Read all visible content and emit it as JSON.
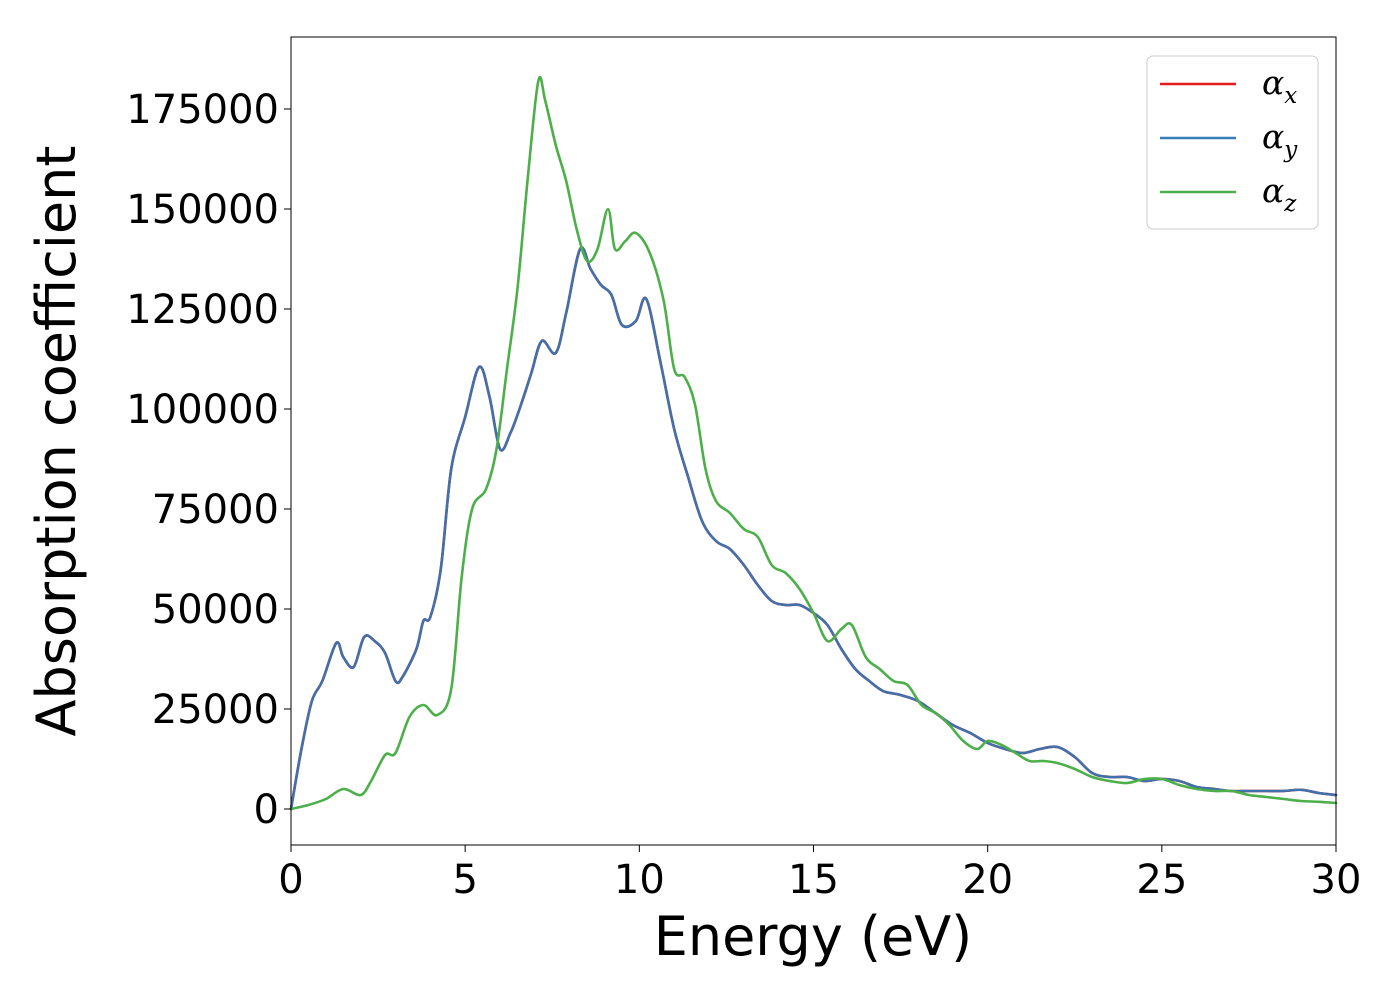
{
  "chart_data": {
    "type": "line",
    "title": "",
    "xlabel": "Energy (eV)",
    "ylabel": "Absorption coefficient",
    "xlim": [
      0,
      30
    ],
    "ylim": [
      -9000,
      193000
    ],
    "xticks": [
      0,
      5,
      10,
      15,
      20,
      25,
      30
    ],
    "xtick_labels": [
      "0",
      "5",
      "10",
      "15",
      "20",
      "25",
      "30"
    ],
    "yticks": [
      0,
      25000,
      50000,
      75000,
      100000,
      125000,
      150000,
      175000
    ],
    "ytick_labels": [
      "0",
      "25000",
      "50000",
      "75000",
      "100000",
      "125000",
      "150000",
      "175000"
    ],
    "grid": false,
    "legend_position": "top-right",
    "legend": [
      {
        "base": "α",
        "sub": "x",
        "color": "#e41a1c"
      },
      {
        "base": "α",
        "sub": "y",
        "color": "#377eb8"
      },
      {
        "base": "α",
        "sub": "z",
        "color": "#4daf4a"
      }
    ],
    "series": [
      {
        "color": "#e41a1c",
        "x": [
          0,
          0.3,
          0.6,
          0.9,
          1.3,
          1.5,
          1.8,
          2.1,
          2.4,
          2.7,
          3.0,
          3.2,
          3.6,
          3.8,
          4.0,
          4.3,
          4.6,
          5.0,
          5.4,
          5.7,
          6.0,
          6.3,
          6.6,
          6.9,
          7.2,
          7.6,
          7.9,
          8.3,
          8.6,
          8.9,
          9.2,
          9.5,
          9.9,
          10.2,
          10.6,
          11.0,
          11.4,
          11.8,
          12.2,
          12.6,
          13.0,
          13.4,
          13.8,
          14.2,
          14.6,
          15.0,
          15.4,
          15.8,
          16.2,
          16.6,
          17.0,
          17.5,
          18.0,
          18.5,
          19.0,
          19.5,
          20.0,
          20.5,
          21.0,
          21.5,
          22.0,
          22.5,
          23.0,
          23.5,
          24.0,
          24.5,
          25.0,
          25.5,
          26.0,
          26.5,
          27.0,
          27.5,
          28.0,
          28.5,
          29.0,
          29.5,
          30.0
        ],
        "y": [
          0,
          15000,
          27000,
          32000,
          41500,
          38000,
          35500,
          43000,
          42000,
          39000,
          32000,
          33000,
          40000,
          47000,
          48000,
          60000,
          85000,
          98000,
          110500,
          103000,
          90000,
          94000,
          101000,
          109000,
          117000,
          114000,
          124000,
          140000,
          135000,
          131000,
          128500,
          121000,
          122000,
          127500,
          112000,
          95000,
          83000,
          72000,
          67000,
          65000,
          61000,
          56000,
          52000,
          51000,
          51000,
          49000,
          46000,
          40000,
          35000,
          32000,
          29500,
          28500,
          27000,
          24000,
          21000,
          19000,
          16500,
          15000,
          14000,
          15000,
          15500,
          13000,
          9000,
          8000,
          8000,
          7000,
          7500,
          7000,
          5500,
          5000,
          4500,
          4500,
          4500,
          4500,
          4800,
          4000,
          3500
        ]
      },
      {
        "color": "#4170aa",
        "x": [
          0,
          0.3,
          0.6,
          0.9,
          1.3,
          1.5,
          1.8,
          2.1,
          2.4,
          2.7,
          3.0,
          3.2,
          3.6,
          3.8,
          4.0,
          4.3,
          4.6,
          5.0,
          5.4,
          5.7,
          6.0,
          6.3,
          6.6,
          6.9,
          7.2,
          7.6,
          7.9,
          8.3,
          8.6,
          8.9,
          9.2,
          9.5,
          9.9,
          10.2,
          10.6,
          11.0,
          11.4,
          11.8,
          12.2,
          12.6,
          13.0,
          13.4,
          13.8,
          14.2,
          14.6,
          15.0,
          15.4,
          15.8,
          16.2,
          16.6,
          17.0,
          17.5,
          18.0,
          18.5,
          19.0,
          19.5,
          20.0,
          20.5,
          21.0,
          21.5,
          22.0,
          22.5,
          23.0,
          23.5,
          24.0,
          24.5,
          25.0,
          25.5,
          26.0,
          26.5,
          27.0,
          27.5,
          28.0,
          28.5,
          29.0,
          29.5,
          30.0
        ],
        "y": [
          0,
          15000,
          27000,
          32000,
          41500,
          38000,
          35500,
          43000,
          42000,
          39000,
          32000,
          33000,
          40000,
          47000,
          48000,
          60000,
          85000,
          98000,
          110500,
          103000,
          90000,
          94000,
          101000,
          109000,
          117000,
          114000,
          124000,
          140000,
          135000,
          131000,
          128500,
          121000,
          122000,
          127500,
          112000,
          95000,
          83000,
          72000,
          67000,
          65000,
          61000,
          56000,
          52000,
          51000,
          51000,
          49000,
          46000,
          40000,
          35000,
          32000,
          29500,
          28500,
          27000,
          24000,
          21000,
          19000,
          16500,
          15000,
          14000,
          15000,
          15500,
          13000,
          9000,
          8000,
          8000,
          7000,
          7500,
          7000,
          5500,
          5000,
          4500,
          4500,
          4500,
          4500,
          4800,
          4000,
          3500
        ]
      },
      {
        "color": "#4daf4a",
        "x": [
          0,
          0.5,
          1.0,
          1.5,
          2.0,
          2.3,
          2.7,
          3.0,
          3.4,
          3.8,
          4.2,
          4.6,
          4.9,
          5.2,
          5.6,
          5.9,
          6.2,
          6.5,
          6.8,
          7.1,
          7.3,
          7.6,
          7.9,
          8.2,
          8.5,
          8.8,
          9.1,
          9.3,
          9.6,
          9.9,
          10.3,
          10.7,
          11.0,
          11.3,
          11.6,
          11.9,
          12.2,
          12.6,
          13.0,
          13.4,
          13.8,
          14.2,
          14.6,
          15.0,
          15.4,
          15.8,
          16.1,
          16.5,
          16.9,
          17.3,
          17.7,
          18.1,
          18.5,
          18.9,
          19.3,
          19.7,
          20.0,
          20.4,
          20.8,
          21.2,
          21.6,
          22.0,
          22.5,
          23.0,
          23.5,
          24.0,
          24.5,
          25.0,
          25.5,
          26.0,
          26.5,
          27.0,
          27.5,
          28.0,
          28.5,
          29.0,
          29.5,
          30.0
        ],
        "y": [
          0,
          1000,
          2500,
          5000,
          3500,
          7000,
          13500,
          14000,
          23000,
          26000,
          23500,
          30000,
          58000,
          75000,
          80000,
          90000,
          110000,
          130000,
          158000,
          182000,
          177000,
          166000,
          157000,
          145000,
          137000,
          140000,
          150000,
          140000,
          142000,
          144000,
          139000,
          127000,
          110000,
          108000,
          101000,
          85000,
          77000,
          74000,
          70000,
          68000,
          61000,
          59000,
          55000,
          49000,
          42000,
          45000,
          46000,
          38000,
          35000,
          32000,
          31000,
          26000,
          24000,
          21000,
          17000,
          15000,
          17000,
          16000,
          14000,
          12000,
          12000,
          11500,
          10000,
          8000,
          7000,
          6500,
          7500,
          7500,
          6000,
          5000,
          4500,
          4500,
          3500,
          3000,
          2500,
          2000,
          1800,
          1500
        ]
      }
    ]
  }
}
